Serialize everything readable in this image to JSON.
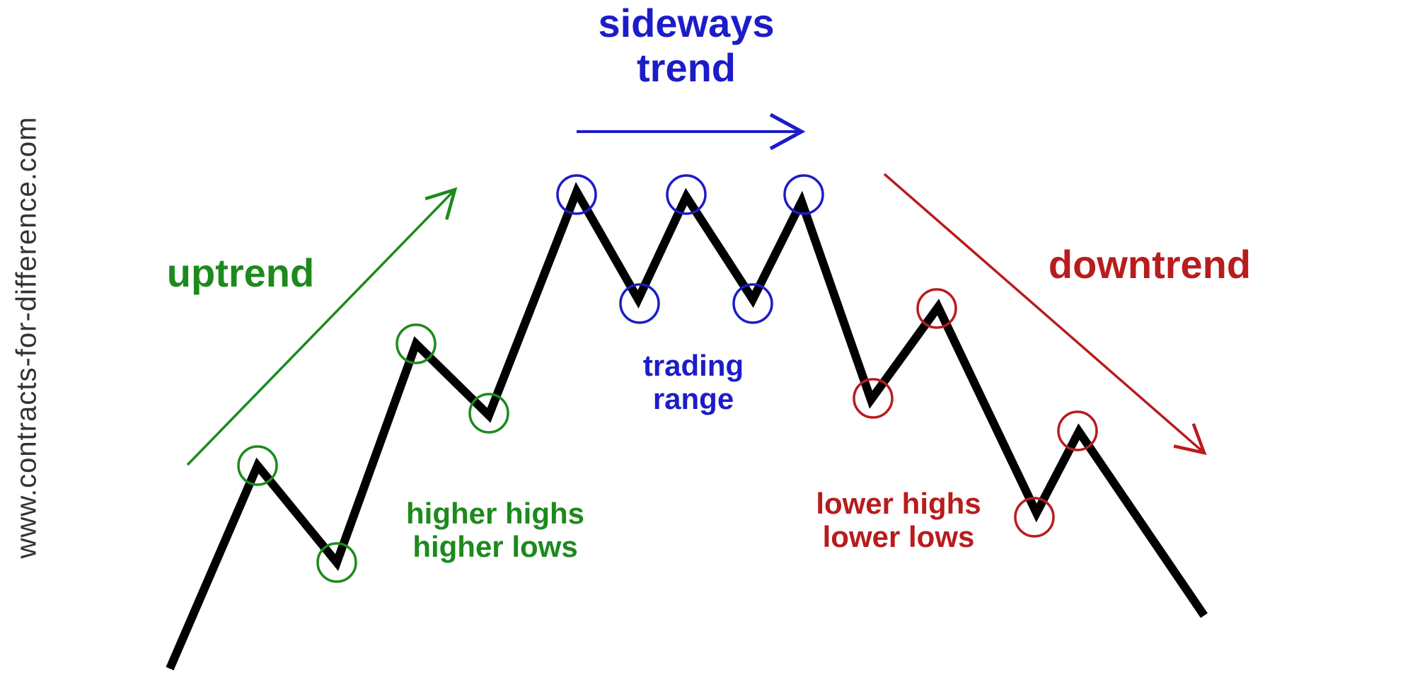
{
  "watermark": "www.contracts-for-difference.com",
  "labels": {
    "uptrend": "uptrend",
    "sideways_line1": "sideways",
    "sideways_line2": "trend",
    "downtrend": "downtrend",
    "hhhl_line1": "higher highs",
    "hhhl_line2": "higher lows",
    "trading_line1": "trading",
    "trading_line2": "range",
    "lhll_line1": "lower highs",
    "lhll_line2": "lower lows"
  },
  "colors": {
    "uptrend": "#1c8a1c",
    "sideways": "#1c1cc8",
    "downtrend": "#b81c1c",
    "price_line": "#000000"
  }
}
